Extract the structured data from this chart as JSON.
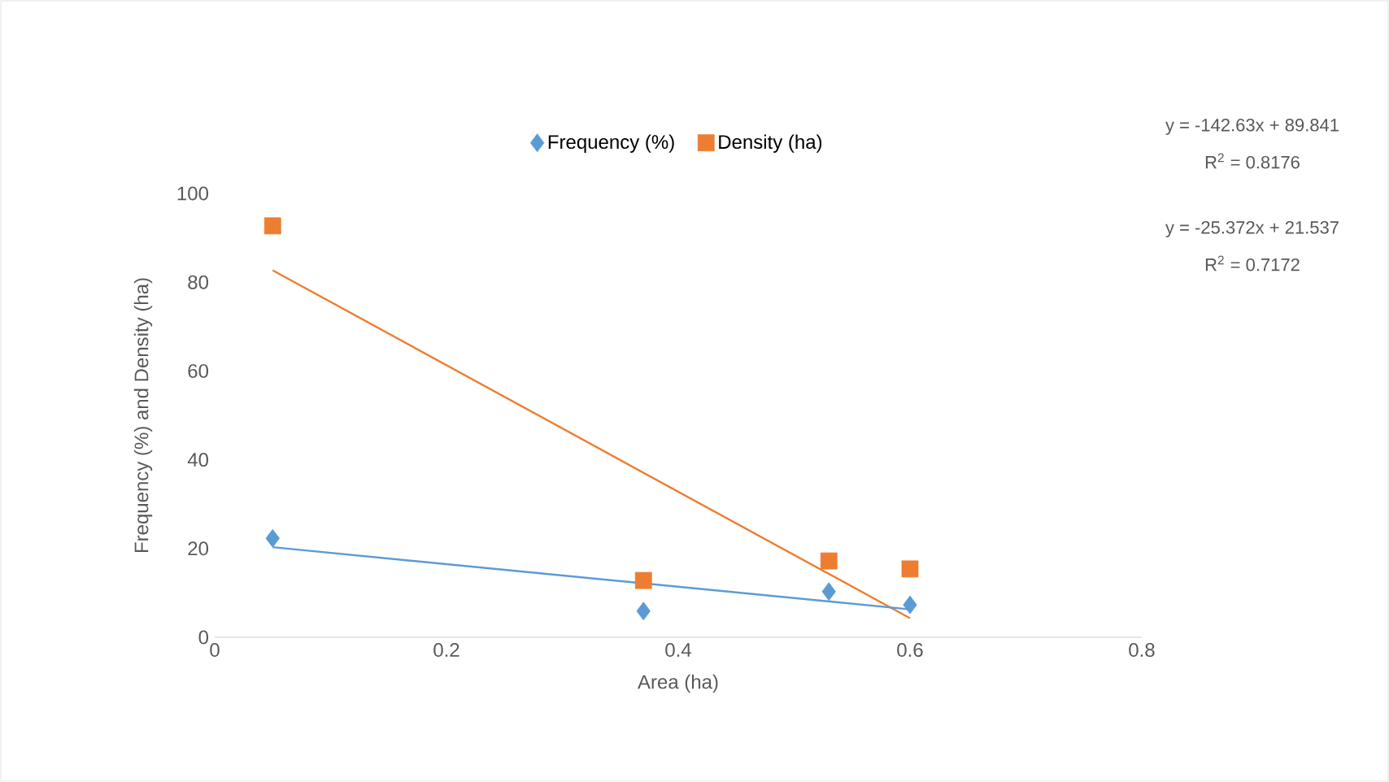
{
  "chart_data": {
    "type": "scatter",
    "xlabel": "Area (ha)",
    "ylabel": "Frequency (%) and Density (ha)",
    "xlim": [
      0,
      0.8
    ],
    "xticks": [
      0,
      0.2,
      0.4,
      0.6,
      0.8
    ],
    "ylim": [
      0,
      100
    ],
    "yticks": [
      0,
      20,
      40,
      60,
      80,
      100
    ],
    "legend": "top",
    "annotations": [
      "y = -142.63x + 89.841",
      "R$^{2}$ = 0.8176",
      "y = -25.372x + 21.537",
      "R$^{2}$ = 0.7172"
    ],
    "series": [
      {
        "name": "Frequency (%)",
        "color": "#5b9bd5",
        "marker": "diamond",
        "x": [
          0.05,
          0.37,
          0.53,
          0.6
        ],
        "values": [
          22.3,
          5.9,
          10.3,
          7.3
        ]
      },
      {
        "name": "Density (ha)",
        "color": "#ed7d31",
        "marker": "square",
        "x": [
          0.05,
          0.37,
          0.53,
          0.6
        ],
        "values": [
          92.7,
          12.8,
          17.2,
          15.4
        ]
      },
      {
        "type": "line",
        "color": "#ed7d31",
        "marker": "none",
        "x": [
          0.05,
          0.6
        ],
        "values": [
          82.7,
          4.3
        ]
      },
      {
        "type": "line",
        "color": "#5b9bd5",
        "marker": "none",
        "x": [
          0.05,
          0.6
        ],
        "values": [
          20.3,
          6.3
        ]
      }
    ]
  }
}
